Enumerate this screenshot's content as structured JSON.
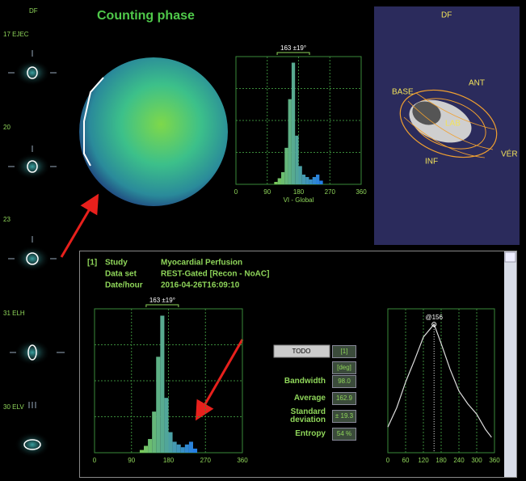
{
  "header": {
    "title": "Counting phase"
  },
  "slices": {
    "top_label": "DF",
    "labels": [
      "17 EJEC",
      "20",
      "23",
      "31 ELH",
      "30 ELV"
    ]
  },
  "histogram_top": {
    "annotation": "163 ±19°",
    "xlabel": "VI - Global",
    "bins": [
      110,
      120,
      130,
      140,
      150,
      160,
      170,
      180,
      190,
      200,
      210,
      220,
      230,
      240,
      250
    ],
    "values": [
      2,
      5,
      10,
      30,
      70,
      100,
      40,
      15,
      8,
      6,
      4,
      6,
      8,
      3
    ],
    "xlim": [
      0,
      360
    ],
    "xticks": [
      0,
      90,
      180,
      270,
      360
    ],
    "ylim": [
      0,
      105
    ]
  },
  "view3d": {
    "labels": {
      "top": "DF",
      "base": "BASE",
      "ant": "ANT",
      "lab": "LAB",
      "inf": "INF",
      "ver": "VÉR"
    }
  },
  "study": {
    "index": "[1]",
    "rows": [
      {
        "key": "Study",
        "value": "Myocardial Perfusion"
      },
      {
        "key": "Data set",
        "value": "REST-Gated [Recon - NoAC]"
      },
      {
        "key": "Date/hour",
        "value": "2016-04-26T16:09:10"
      }
    ]
  },
  "histogram_bottom": {
    "annotation": "163 ±19°",
    "bins": [
      110,
      120,
      130,
      140,
      150,
      160,
      170,
      180,
      190,
      200,
      210,
      220,
      230,
      240,
      250
    ],
    "values": [
      2,
      5,
      10,
      30,
      70,
      100,
      40,
      15,
      8,
      6,
      4,
      6,
      8,
      3
    ],
    "xlim": [
      0,
      360
    ],
    "xticks": [
      0,
      90,
      180,
      270,
      360
    ],
    "ylim": [
      0,
      105
    ]
  },
  "stats": {
    "button": "TODO",
    "column": "[1]",
    "unit": "[deg]",
    "rows": [
      {
        "label": "Bandwidth",
        "value": "98.0"
      },
      {
        "label": "Average",
        "value": "162.9"
      },
      {
        "label": "Standard deviation",
        "value": "± 19.3"
      },
      {
        "label": "Entropy",
        "value": "54 %"
      }
    ]
  },
  "curve": {
    "peak_label": "@156",
    "x": [
      0,
      30,
      60,
      90,
      120,
      156,
      180,
      210,
      240,
      270,
      300,
      330,
      350
    ],
    "values": [
      20,
      35,
      55,
      72,
      90,
      100,
      85,
      65,
      48,
      38,
      30,
      18,
      12
    ],
    "xlim": [
      0,
      360
    ],
    "xticks": [
      0,
      60,
      120,
      180,
      240,
      300,
      360
    ],
    "ylim": [
      0,
      112
    ]
  }
}
